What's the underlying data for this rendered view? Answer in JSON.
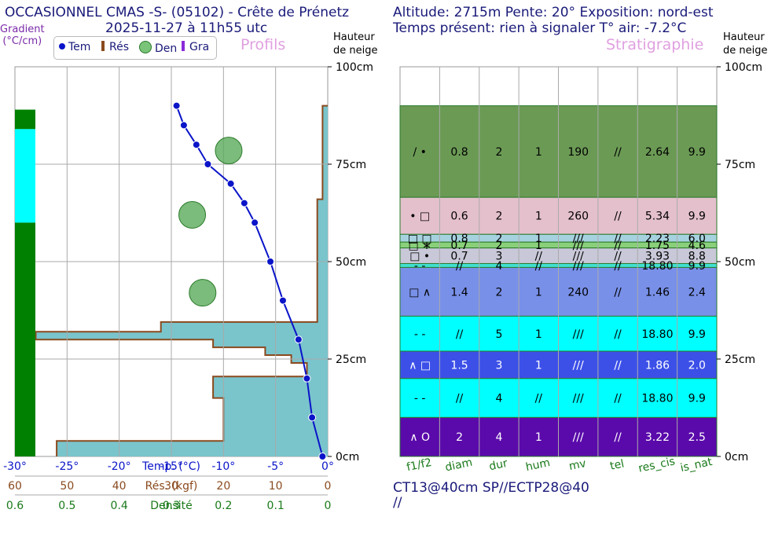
{
  "header": {
    "left_title": "OCCASIONNEL CMAS -S- (05102) - Crête de Prénetz",
    "left_subtitle": "2025-11-27 à 11h55 utc",
    "right_title": "Altitude: 2715m Pente: 20° Exposition: nord-est",
    "right_subtitle": "Temps présent: rien à signaler T° air: -7.2°C"
  },
  "labels": {
    "gradient_line1": "Gradient",
    "gradient_line2": "(°C/cm)",
    "profils": "Profils",
    "stratigraphie": "Stratigraphie",
    "hauteur_line1": "Hauteur",
    "hauteur_line2": "de neige"
  },
  "legend": {
    "tem": "Tem",
    "res": "Rés",
    "den": "Den",
    "gra": "Gra"
  },
  "tests": {
    "line1": "CT13@40cm SP//ECTP28@40",
    "line2": "//"
  },
  "colors": {
    "temp": "#0a14c8",
    "resistance": "#8a4a1e",
    "resistance_fill": "#7ac4cc",
    "density": "#5aaa5a",
    "gradient": "#008000",
    "gradient_high": "#00ffff",
    "title": "#1a1a7a",
    "pink": "#e0a0e0"
  },
  "chart_data": [
    {
      "type": "line",
      "name": "profils",
      "height_axis": {
        "range": [
          0,
          100
        ],
        "ticks": [
          "0cm",
          "25cm",
          "50cm",
          "75cm",
          "100cm"
        ],
        "tick_values": [
          0,
          25,
          50,
          75,
          100
        ]
      },
      "temp_axis": {
        "label": "Temp. (°C)",
        "range": [
          -30,
          0
        ],
        "ticks": [
          "-30°",
          "-25°",
          "-20°",
          "-15°",
          "-10°",
          "-5°",
          "0°"
        ],
        "tick_values": [
          -30,
          -25,
          -20,
          -15,
          -10,
          -5,
          0
        ]
      },
      "res_axis": {
        "label": "Rés. (kgf)",
        "ticks": [
          "60",
          "50",
          "40",
          "30",
          "20",
          "10",
          "0"
        ],
        "tick_values": [
          60,
          50,
          40,
          30,
          20,
          10,
          0
        ]
      },
      "dens_axis": {
        "label": "Densité",
        "ticks": [
          "0.6",
          "0.5",
          "0.4",
          "0.3",
          "0.2",
          "0.1",
          "0"
        ],
        "tick_values": [
          0.6,
          0.5,
          0.4,
          0.3,
          0.2,
          0.1,
          0
        ]
      },
      "temperature": {
        "h": [
          90,
          85,
          80,
          75,
          70,
          65,
          60,
          50,
          40,
          30,
          20,
          10,
          0
        ],
        "t": [
          -14.5,
          -13.8,
          -12.6,
          -11.5,
          -9.3,
          -8.0,
          -7.0,
          -5.5,
          -4.3,
          -2.8,
          -2.0,
          -1.5,
          -0.5
        ]
      },
      "resistance_profile": [
        {
          "from": 90,
          "to": 66,
          "res": 1
        },
        {
          "from": 66,
          "to": 34.5,
          "res": 2
        },
        {
          "from": 34.5,
          "to": 32,
          "res": 32
        },
        {
          "from": 32,
          "to": 30,
          "res": 56
        },
        {
          "from": 30,
          "to": 28,
          "res": 22
        },
        {
          "from": 28,
          "to": 26,
          "res": 12
        },
        {
          "from": 26,
          "to": 24,
          "res": 7
        },
        {
          "from": 24,
          "to": 20.5,
          "res": 4
        },
        {
          "from": 20.5,
          "to": 19,
          "res": 22
        },
        {
          "from": 19,
          "to": 15,
          "res": 22
        },
        {
          "from": 15,
          "to": 4,
          "res": 20
        },
        {
          "from": 4,
          "to": 0,
          "res": 52
        }
      ],
      "density_points": [
        {
          "h": 78.5,
          "d": 0.19
        },
        {
          "h": 62,
          "d": 0.26
        },
        {
          "h": 42,
          "d": 0.24
        }
      ],
      "gradient_bands": [
        {
          "from": 89,
          "to": 84,
          "level": "normal"
        },
        {
          "from": 84,
          "to": 60,
          "level": "high"
        },
        {
          "from": 60,
          "to": 0,
          "level": "normal"
        }
      ]
    },
    {
      "type": "table",
      "name": "stratigraphie",
      "columns": [
        "f1/f2",
        "diam",
        "dur",
        "hum",
        "mv",
        "tel",
        "res_cis",
        "is_nat"
      ],
      "layers": [
        {
          "from": 90,
          "to": 66.5,
          "color": "#6b9a55",
          "values": [
            "/ •",
            "0.8",
            "2",
            "1",
            "190",
            "//",
            "2.64",
            "9.9"
          ]
        },
        {
          "from": 66.5,
          "to": 57,
          "color": "#e4c0cc",
          "values": [
            "• □",
            "0.6",
            "2",
            "1",
            "260",
            "//",
            "5.34",
            "9.9"
          ]
        },
        {
          "from": 57,
          "to": 55,
          "color": "#a6d2e0",
          "values": [
            "□ □",
            "0.8",
            "2",
            "1",
            "///",
            "//",
            "2.23",
            "6.0"
          ]
        },
        {
          "from": 55,
          "to": 53.5,
          "color": "#8ad07a",
          "values": [
            "□ ∗",
            "0.7",
            "2",
            "1",
            "///",
            "//",
            "1.75",
            "4.6"
          ]
        },
        {
          "from": 53.5,
          "to": 49.5,
          "color": "#c8c8d8",
          "values": [
            "□ •",
            "0.7",
            "3",
            "//",
            "///",
            "//",
            "3.93",
            "8.8"
          ]
        },
        {
          "from": 49.5,
          "to": 48.5,
          "color": "#40e0d0",
          "values": [
            "- -",
            "//",
            "4",
            "//",
            "///",
            "//",
            "18.80",
            "9.9"
          ]
        },
        {
          "from": 48.5,
          "to": 36,
          "color": "#7890e8",
          "values": [
            "□ ∧",
            "1.4",
            "2",
            "1",
            "240",
            "//",
            "1.46",
            "2.4"
          ]
        },
        {
          "from": 36,
          "to": 27,
          "color": "#00ffff",
          "values": [
            "- -",
            "//",
            "5",
            "1",
            "///",
            "//",
            "18.80",
            "9.9"
          ]
        },
        {
          "from": 27,
          "to": 20,
          "color": "#3c50e8",
          "values": [
            "∧ □",
            "1.5",
            "3",
            "1",
            "///",
            "//",
            "1.86",
            "2.0"
          ]
        },
        {
          "from": 20,
          "to": 10,
          "color": "#00ffff",
          "values": [
            "- -",
            "//",
            "4",
            "//",
            "///",
            "//",
            "18.80",
            "9.9"
          ]
        },
        {
          "from": 10,
          "to": 0,
          "color": "#5a0aaa",
          "values": [
            "∧ O",
            "2",
            "4",
            "1",
            "///",
            "//",
            "3.22",
            "2.5"
          ]
        }
      ],
      "height_axis": {
        "range": [
          0,
          100
        ],
        "ticks": [
          "0cm",
          "25cm",
          "50cm",
          "75cm",
          "100cm"
        ],
        "tick_values": [
          0,
          25,
          50,
          75,
          100
        ]
      }
    }
  ]
}
